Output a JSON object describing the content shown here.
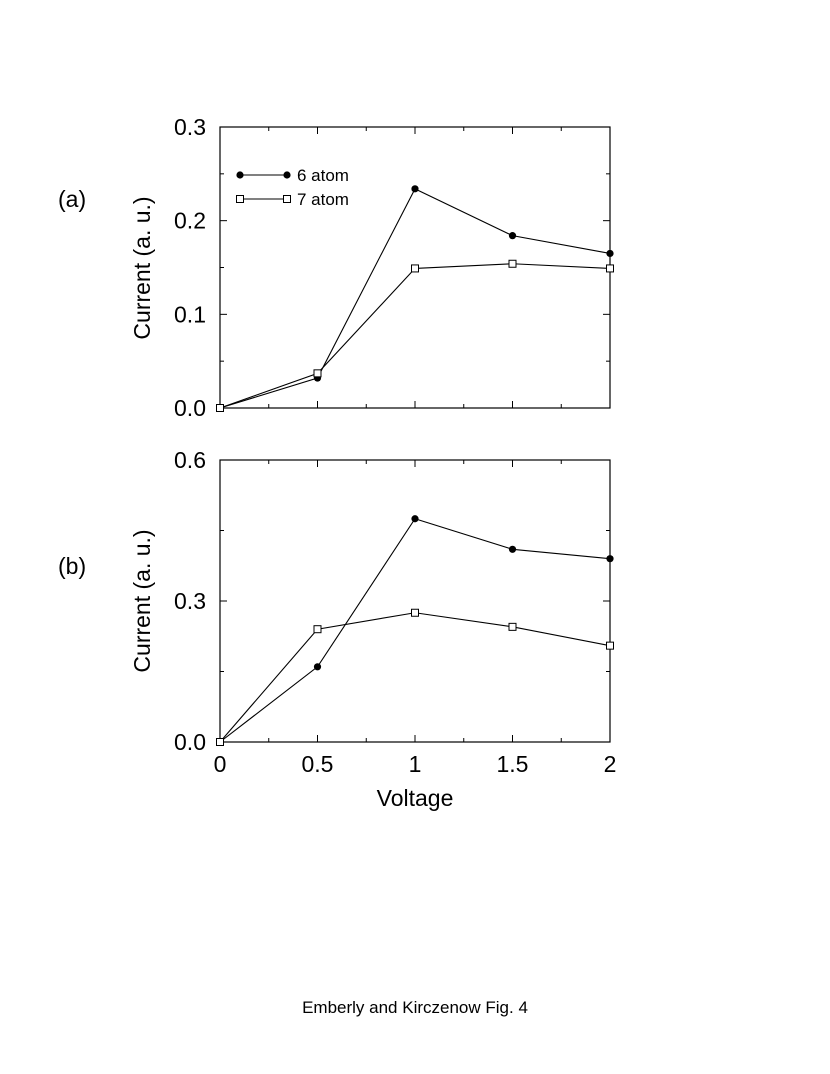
{
  "caption": "Emberly and Kirczenow Fig. 4",
  "chart_data": [
    {
      "type": "line",
      "panel_label": "(a)",
      "xlabel": "",
      "ylabel": "Current (a. u.)",
      "xlim": [
        0,
        2
      ],
      "ylim": [
        0,
        0.3
      ],
      "yticks": [
        "0.0",
        "0.1",
        "0.2",
        "0.3"
      ],
      "xticks": [],
      "grid": false,
      "legend": "top-left",
      "x": [
        0,
        0.5,
        1,
        1.5,
        2
      ],
      "series": [
        {
          "name": "6 atom",
          "marker": "filled-circle",
          "values": [
            0,
            0.032,
            0.234,
            0.184,
            0.165
          ]
        },
        {
          "name": "7 atom",
          "marker": "open-square",
          "values": [
            0,
            0.037,
            0.149,
            0.154,
            0.149
          ]
        }
      ]
    },
    {
      "type": "line",
      "panel_label": "(b)",
      "xlabel": "Voltage",
      "ylabel": "Current (a. u.)",
      "xlim": [
        0,
        2
      ],
      "ylim": [
        0,
        0.6
      ],
      "yticks": [
        "0.0",
        "0.3",
        "0.6"
      ],
      "xticks": [
        "0",
        "0.5",
        "1",
        "1.5",
        "2"
      ],
      "grid": false,
      "x": [
        0,
        0.5,
        1,
        1.5,
        2
      ],
      "series": [
        {
          "name": "6 atom",
          "marker": "filled-circle",
          "values": [
            0,
            0.16,
            0.475,
            0.41,
            0.39
          ]
        },
        {
          "name": "7 atom",
          "marker": "open-square",
          "values": [
            0,
            0.24,
            0.275,
            0.245,
            0.205
          ]
        }
      ]
    }
  ]
}
